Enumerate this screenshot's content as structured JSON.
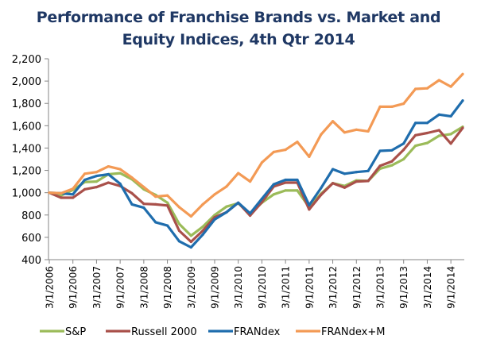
{
  "chart_data": {
    "type": "line",
    "title_lines": [
      "Performance of Franchise Brands vs. Market and",
      "Equity Indices, 4th Qtr 2014"
    ],
    "title": "Performance of Franchise Brands vs. Market and Equity Indices, 4th Qtr 2014",
    "xlabel": "",
    "ylabel": "",
    "ylim": [
      400,
      2200
    ],
    "yticks": [
      400,
      600,
      800,
      1000,
      1200,
      1400,
      1600,
      1800,
      2000,
      2200
    ],
    "ytick_labels": [
      "400",
      "600",
      "800",
      "1,000",
      "1,200",
      "1,400",
      "1,600",
      "1,800",
      "2,000",
      "2,200"
    ],
    "x": [
      "3/1/2006",
      "6/1/2006",
      "9/1/2006",
      "12/1/2006",
      "3/1/2007",
      "6/1/2007",
      "9/1/2007",
      "12/1/2007",
      "3/1/2008",
      "6/1/2008",
      "9/1/2008",
      "12/1/2008",
      "3/1/2009",
      "6/1/2009",
      "9/1/2009",
      "12/1/2009",
      "3/1/2010",
      "6/1/2010",
      "9/1/2010",
      "12/1/2010",
      "3/1/2011",
      "6/1/2011",
      "9/1/2011",
      "12/1/2011",
      "3/1/2012",
      "6/1/2012",
      "9/1/2012",
      "12/1/2012",
      "3/1/2013",
      "6/1/2013",
      "9/1/2013",
      "12/1/2013",
      "3/1/2014",
      "6/1/2014",
      "9/1/2014",
      "12/1/2014"
    ],
    "xtick_labels": [
      "3/1/2006",
      "9/1/2006",
      "3/1/2007",
      "9/1/2007",
      "3/1/2008",
      "9/1/2008",
      "3/1/2009",
      "9/1/2009",
      "3/1/2010",
      "9/1/2010",
      "3/1/2011",
      "9/1/2011",
      "3/1/2012",
      "9/1/2012",
      "3/1/2013",
      "9/1/2013",
      "3/1/2014",
      "9/1/2014"
    ],
    "grid": false,
    "legend_position": "bottom",
    "series": [
      {
        "name": "S&P",
        "color": "#9BBB59",
        "values": [
          1000,
          975,
          1025,
          1095,
          1100,
          1165,
          1175,
          1120,
          1030,
          980,
          910,
          720,
          615,
          695,
          800,
          875,
          905,
          810,
          910,
          985,
          1020,
          1020,
          870,
          990,
          1085,
          1060,
          1110,
          1105,
          1215,
          1245,
          1300,
          1420,
          1445,
          1510,
          1525,
          1590
        ]
      },
      {
        "name": "Russell 2000",
        "color": "#A9504A",
        "values": [
          1000,
          955,
          955,
          1030,
          1050,
          1090,
          1060,
          995,
          900,
          895,
          885,
          660,
          560,
          660,
          780,
          825,
          910,
          795,
          915,
          1055,
          1090,
          1090,
          850,
          980,
          1085,
          1045,
          1100,
          1105,
          1240,
          1280,
          1385,
          1515,
          1535,
          1560,
          1440,
          1580
        ]
      },
      {
        "name": "FRANdex",
        "color": "#1F6DAD",
        "values": [
          1000,
          995,
          985,
          1115,
          1150,
          1165,
          1080,
          895,
          865,
          735,
          705,
          565,
          510,
          625,
          760,
          825,
          910,
          815,
          945,
          1075,
          1115,
          1115,
          888,
          1040,
          1210,
          1170,
          1185,
          1195,
          1375,
          1380,
          1440,
          1625,
          1625,
          1700,
          1685,
          1825
        ]
      },
      {
        "name": "FRANdex+M",
        "color": "#F39A55",
        "values": [
          1000,
          995,
          1035,
          1170,
          1185,
          1235,
          1210,
          1135,
          1050,
          965,
          975,
          870,
          788,
          895,
          985,
          1055,
          1175,
          1100,
          1270,
          1365,
          1385,
          1455,
          1322,
          1520,
          1640,
          1540,
          1565,
          1550,
          1770,
          1770,
          1797,
          1930,
          1935,
          2008,
          1950,
          2063
        ]
      }
    ]
  }
}
